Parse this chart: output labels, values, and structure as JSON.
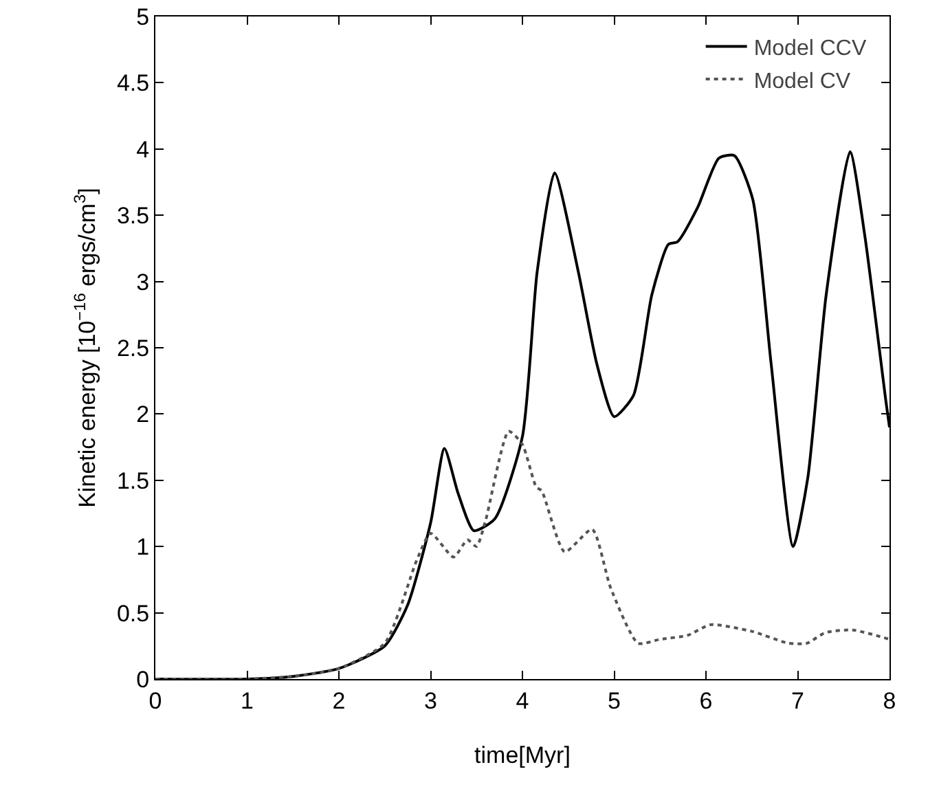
{
  "chart_data": {
    "type": "line",
    "xlabel": "time[Myr]",
    "ylabel": "Kinetic energy [10$^{−16}$ ergs/cm$^{3}$]",
    "xlim": [
      0,
      8
    ],
    "xticks": [
      0,
      1,
      2,
      3,
      4,
      5,
      6,
      7,
      8
    ],
    "ylim": [
      0,
      5
    ],
    "yticks": [
      0,
      0.5,
      1,
      1.5,
      2,
      2.5,
      3,
      3.5,
      4,
      4.5,
      5
    ],
    "grid": false,
    "legend": "top right",
    "marker": "none",
    "series": [
      {
        "name": "Model CCV",
        "color": "#000000",
        "line_style": "solid",
        "x": [
          0,
          1,
          1.5,
          2,
          2.5,
          2.75,
          3,
          3.15,
          3.3,
          3.47,
          3.7,
          4,
          4.16,
          4.35,
          4.61,
          4.81,
          5,
          5.21,
          5.41,
          5.59,
          5.69,
          5.91,
          6.14,
          6.31,
          6.51,
          6.71,
          6.95,
          7.11,
          7.31,
          7.57,
          7.73,
          7.96,
          8
        ],
        "values": [
          0,
          0,
          0.02,
          0.08,
          0.25,
          0.56,
          1.18,
          1.74,
          1.4,
          1.12,
          1.21,
          1.83,
          3.07,
          3.82,
          3.07,
          2.38,
          1.98,
          2.14,
          2.9,
          3.28,
          3.3,
          3.56,
          3.93,
          3.95,
          3.62,
          2.38,
          1.0,
          1.52,
          2.9,
          3.98,
          3.35,
          2.1,
          1.9
        ]
      },
      {
        "name": "Model CV",
        "color": "#555555",
        "line_style": "dotted",
        "x": [
          0,
          1,
          1.5,
          2,
          2.5,
          2.85,
          3,
          3.25,
          3.4,
          3.5,
          3.6,
          3.85,
          4,
          4.15,
          4.21,
          4.46,
          4.76,
          4.96,
          5.26,
          5.5,
          5.8,
          6.05,
          6.5,
          6.9,
          7.1,
          7.3,
          7.6,
          8
        ],
        "values": [
          0,
          0,
          0.02,
          0.08,
          0.27,
          0.9,
          1.1,
          0.92,
          1.05,
          1.0,
          1.2,
          1.87,
          1.77,
          1.45,
          1.42,
          0.96,
          1.13,
          0.69,
          0.27,
          0.3,
          0.33,
          0.41,
          0.36,
          0.27,
          0.27,
          0.35,
          0.37,
          0.3
        ]
      }
    ]
  }
}
